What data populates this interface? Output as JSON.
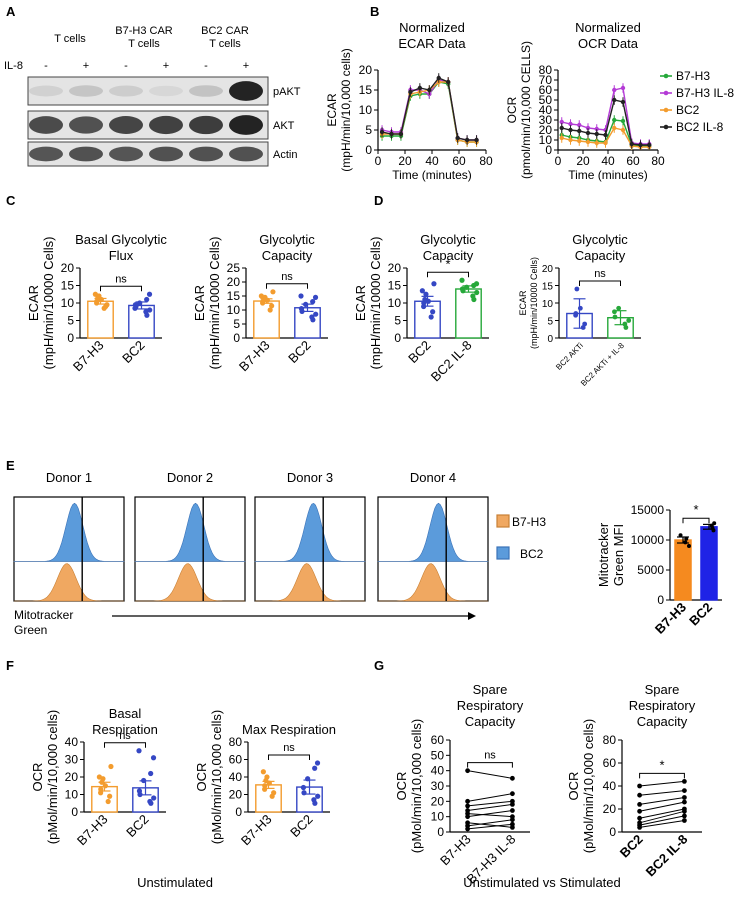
{
  "panels": {
    "A": "A",
    "B": "B",
    "C": "C",
    "D": "D",
    "E": "E",
    "F": "F",
    "G": "G"
  },
  "colors": {
    "b7h3": "#F39C2E",
    "b7h3il8": "#B43BD6",
    "bc2": "#3547C4",
    "bc2il8": "#2E9E3C",
    "bc2_ocr": "#F39C2E",
    "bc2il8_ocr": "#222222",
    "mito_b7h3": "#F0A861",
    "mito_bc2": "#5B9BDB",
    "bar_b7h3_e": "#F58A1F",
    "bar_bc2_e": "#1F23E6",
    "green": "#26A83A"
  },
  "western": {
    "row_label": "IL-8",
    "groups": [
      "T cells",
      "B7-H3 CAR\nT cells",
      "BC2 CAR\nT cells"
    ],
    "signs": [
      "-",
      "+",
      "-",
      "+",
      "-",
      "+"
    ],
    "bands": [
      "pAKT",
      "AKT",
      "Actin"
    ],
    "intensities": {
      "pAKT": [
        0.08,
        0.14,
        0.1,
        0.05,
        0.15,
        0.95
      ],
      "AKT": [
        0.75,
        0.72,
        0.78,
        0.8,
        0.82,
        0.95
      ],
      "Actin": [
        0.7,
        0.72,
        0.7,
        0.72,
        0.72,
        0.72
      ]
    }
  },
  "chart_data": [
    {
      "id": "B-ECAR",
      "type": "line",
      "title": "Normalized\nECAR Data",
      "xlabel": "Time (minutes)",
      "ylabel": "ECAR\n(mpH/min/10,000 cells)",
      "xlim": [
        0,
        80
      ],
      "ylim": [
        0,
        20
      ],
      "xticks": [
        0,
        20,
        40,
        60,
        80
      ],
      "yticks": [
        0,
        5,
        10,
        15,
        20
      ],
      "x": [
        3,
        10,
        17,
        24,
        31,
        38,
        45,
        52,
        59,
        66,
        73
      ],
      "series": [
        {
          "name": "B7-H3",
          "values": [
            3.5,
            3.5,
            3.5,
            13.5,
            14,
            14,
            17,
            16.5,
            2.5,
            2,
            2
          ]
        },
        {
          "name": "B7-H3 IL-8",
          "values": [
            5,
            4.5,
            4.5,
            15,
            15,
            14,
            17.5,
            17,
            3,
            2.5,
            2.5
          ]
        },
        {
          "name": "BC2",
          "values": [
            4,
            4,
            4,
            14,
            14.5,
            15,
            17,
            17,
            2.5,
            2,
            2
          ]
        },
        {
          "name": "BC2 IL-8",
          "values": [
            4.5,
            4,
            4,
            14.5,
            15.5,
            15,
            18,
            17,
            3,
            2.5,
            2.5
          ]
        }
      ]
    },
    {
      "id": "B-OCR",
      "type": "line",
      "title": "Normalized\nOCR Data",
      "xlabel": "Time (minutes)",
      "ylabel": "OCR\n(pmol/min/10,000 CELLS)",
      "xlim": [
        0,
        80
      ],
      "ylim": [
        0,
        80
      ],
      "xticks": [
        0,
        20,
        40,
        60,
        80
      ],
      "yticks": [
        0,
        10,
        20,
        30,
        40,
        50,
        60,
        70,
        80
      ],
      "x": [
        3,
        10,
        17,
        24,
        31,
        38,
        45,
        52,
        59,
        66,
        73
      ],
      "series": [
        {
          "name": "B7-H3",
          "values": [
            15,
            13,
            12,
            10,
            9,
            8,
            30,
            29,
            5,
            4,
            4
          ]
        },
        {
          "name": "B7-H3 IL-8",
          "values": [
            28,
            26,
            25,
            22,
            21,
            20,
            60,
            62,
            7,
            6,
            6
          ]
        },
        {
          "name": "BC2",
          "values": [
            12,
            10,
            9,
            8,
            7,
            7,
            22,
            20,
            4,
            3,
            3
          ]
        },
        {
          "name": "BC2 IL-8",
          "values": [
            22,
            20,
            19,
            17,
            16,
            15,
            50,
            48,
            6,
            5,
            5
          ]
        }
      ],
      "legend": [
        "B7-H3",
        "B7-H3 IL-8",
        "BC2",
        "BC2 IL-8"
      ]
    },
    {
      "id": "C1",
      "type": "bar",
      "title": "Basal Glycolytic\nFlux",
      "ylabel": "ECAR\n(mpH/min/10000 Cells)",
      "categories": [
        "B7-H3",
        "BC2"
      ],
      "values": [
        10.5,
        9.3
      ],
      "sem": [
        0.8,
        1.0
      ],
      "ylim": [
        0,
        20
      ],
      "yticks": [
        0,
        5,
        10,
        15,
        20
      ],
      "points": [
        [
          8.5,
          9,
          10,
          10.5,
          11,
          11.5,
          12,
          12.5,
          9.5
        ],
        [
          6.5,
          7.5,
          8,
          9,
          9.5,
          10,
          11,
          12.5,
          8.5
        ]
      ],
      "annotation": "ns"
    },
    {
      "id": "C2",
      "type": "bar",
      "title": "Glycolytic\nCapacity",
      "ylabel": "ECAR\n(mpH/min/10000 Cells)",
      "categories": [
        "B7-H3",
        "BC2"
      ],
      "values": [
        13.2,
        10.8
      ],
      "sem": [
        0.8,
        1.3
      ],
      "ylim": [
        0,
        25
      ],
      "yticks": [
        0,
        5,
        10,
        15,
        20,
        25
      ],
      "points": [
        [
          10,
          11.5,
          12.5,
          13,
          13.5,
          14,
          14.5,
          15,
          16.5
        ],
        [
          6.5,
          7.5,
          8.5,
          9.5,
          10.5,
          12,
          13,
          14.5,
          15
        ]
      ],
      "annotation": "ns"
    },
    {
      "id": "D1",
      "type": "bar",
      "title": "Glycolytic\nCapacity",
      "ylabel": "ECAR\n(mpH/min/10000 Cells)",
      "categories": [
        "BC2",
        "BC2 IL-8"
      ],
      "values": [
        10.5,
        14.0
      ],
      "sem": [
        1.4,
        0.9
      ],
      "ylim": [
        0,
        20
      ],
      "yticks": [
        0,
        5,
        10,
        15,
        20
      ],
      "points": [
        [
          6,
          7.5,
          9,
          10,
          10.5,
          11,
          12.5,
          13.5,
          15.5
        ],
        [
          11,
          12,
          13,
          13.5,
          14,
          14.5,
          15,
          15.5,
          16.5
        ]
      ],
      "annotation": "*"
    },
    {
      "id": "D2",
      "type": "bar",
      "title": "Glycolytic\nCapacity",
      "ylabel": "ECAR\n(mpH/min/10000 Cells)",
      "categories": [
        "BC2 AKTi",
        "BC2 AKTi + IL-8"
      ],
      "values": [
        7.0,
        5.8
      ],
      "sem": [
        4.2,
        2.0
      ],
      "ylim": [
        0,
        20
      ],
      "yticks": [
        0,
        5,
        10,
        15,
        20
      ],
      "points": [
        [
          3,
          4,
          6.5,
          7,
          8.5,
          14
        ],
        [
          3,
          4,
          5,
          6,
          7.5,
          8.5
        ]
      ],
      "annotation": "ns"
    },
    {
      "id": "E-bar",
      "type": "bar",
      "ylabel": "Mitotracker\nGreen MFI",
      "categories": [
        "B7-H3",
        "BC2"
      ],
      "values": [
        10000,
        12200
      ],
      "sem": [
        500,
        400
      ],
      "ylim": [
        0,
        15000
      ],
      "yticks": [
        0,
        5000,
        10000,
        15000
      ],
      "points": [
        [
          9000,
          9600,
          10200,
          10800
        ],
        [
          11600,
          12000,
          12400,
          12800
        ]
      ],
      "annotation": "*"
    },
    {
      "id": "F1",
      "type": "bar",
      "title": "Basal\nRespiration",
      "ylabel": "OCR\n(pMol/min/10,000 cells)",
      "categories": [
        "B7-H3",
        "BC2"
      ],
      "values": [
        14.5,
        13.8
      ],
      "sem": [
        2.5,
        4.0
      ],
      "ylim": [
        0,
        40
      ],
      "yticks": [
        0,
        10,
        20,
        30,
        40
      ],
      "points": [
        [
          6,
          9,
          11,
          13,
          15,
          17,
          19,
          20,
          26
        ],
        [
          5,
          6,
          8,
          10,
          12,
          18,
          22,
          31,
          35
        ]
      ],
      "annotation": "ns"
    },
    {
      "id": "F2",
      "type": "bar",
      "title": "Max Respiration",
      "ylabel": "OCR\n(pMol/min/10,000 cells)",
      "categories": [
        "B7-H3",
        "BC2"
      ],
      "values": [
        31,
        28.5
      ],
      "sem": [
        4,
        8
      ],
      "ylim": [
        0,
        80
      ],
      "yticks": [
        0,
        20,
        40,
        60,
        80
      ],
      "points": [
        [
          18,
          22,
          26,
          30,
          33,
          36,
          40,
          46
        ],
        [
          10,
          14,
          18,
          22,
          28,
          38,
          50,
          56
        ]
      ],
      "annotation": "ns"
    },
    {
      "id": "G1",
      "type": "line",
      "title": "Spare\nRespiratory\nCapacity",
      "ylabel": "OCR\n(pMol/min/10,000 cells)",
      "categories": [
        "B7-H3",
        "B7-H3 IL-8"
      ],
      "ylim": [
        0,
        60
      ],
      "yticks": [
        0,
        10,
        20,
        30,
        40,
        50,
        60
      ],
      "pairs": [
        [
          2,
          5
        ],
        [
          4,
          8
        ],
        [
          6,
          3
        ],
        [
          10,
          14
        ],
        [
          12,
          10
        ],
        [
          14,
          18
        ],
        [
          17,
          20
        ],
        [
          20,
          25
        ],
        [
          40,
          35
        ]
      ],
      "annotation": "ns"
    },
    {
      "id": "G2",
      "type": "line",
      "title": "Spare\nRespiratory\nCapacity",
      "ylabel": "OCR\n(pMol/min/10,000 cells)",
      "categories": [
        "BC2",
        "BC2 IL-8"
      ],
      "ylim": [
        0,
        80
      ],
      "yticks": [
        0,
        20,
        40,
        60,
        80
      ],
      "pairs": [
        [
          4,
          10
        ],
        [
          6,
          14
        ],
        [
          8,
          18
        ],
        [
          12,
          20
        ],
        [
          18,
          26
        ],
        [
          24,
          30
        ],
        [
          32,
          36
        ],
        [
          40,
          44
        ]
      ],
      "annotation": "*"
    }
  ],
  "panelE": {
    "donors": [
      "Donor 1",
      "Donor 2",
      "Donor 3",
      "Donor 4"
    ],
    "legend": [
      "B7-H3",
      "BC2"
    ],
    "axis_label": "Mitotracker\nGreen",
    "histogram_peaks": {
      "bc2": [
        0.55,
        0.55,
        0.53,
        0.55
      ],
      "b7h3": [
        0.48,
        0.48,
        0.47,
        0.48
      ]
    }
  },
  "footers": {
    "F": "Unstimulated",
    "G": "Unstimulated vs Stimulated"
  }
}
